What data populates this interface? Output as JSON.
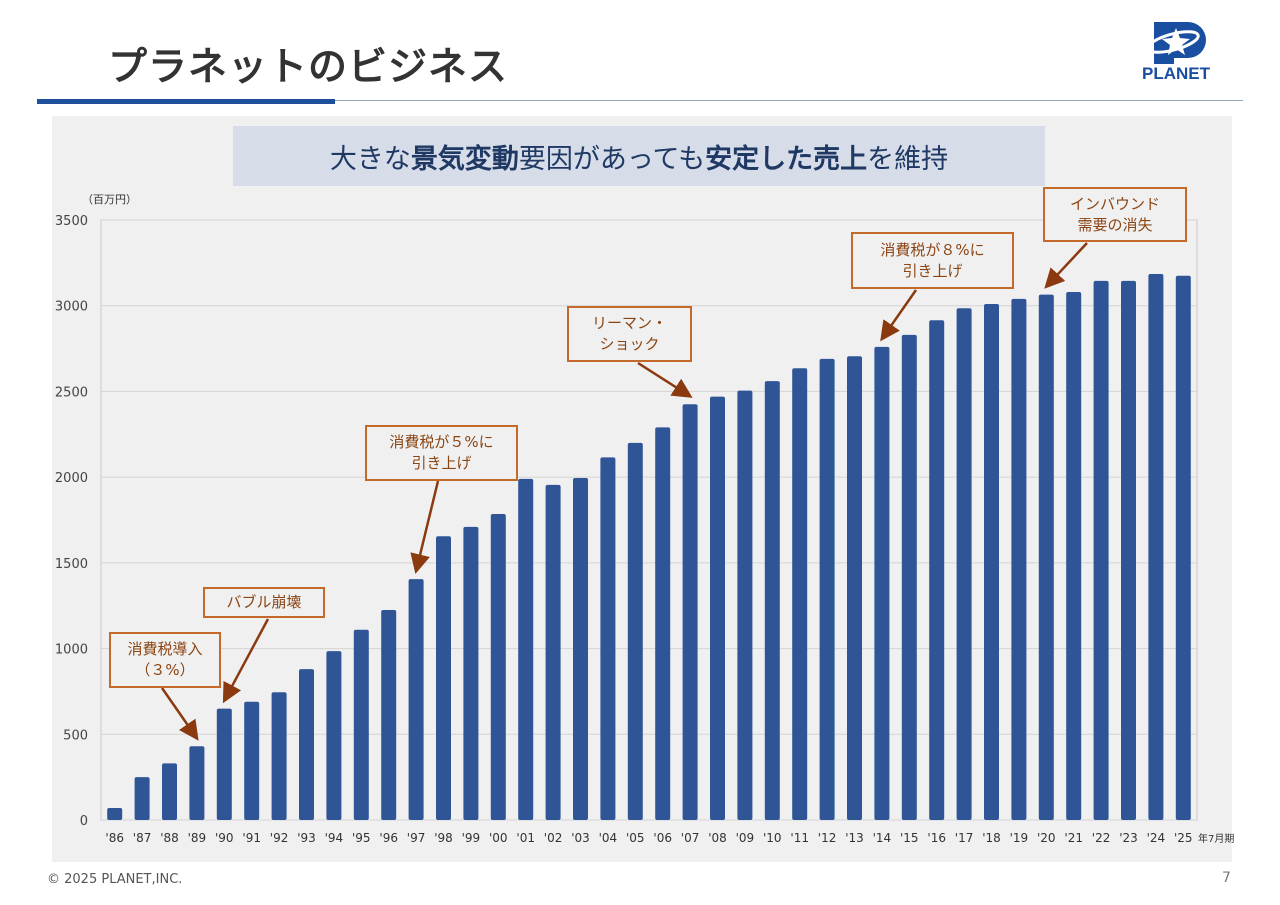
{
  "header": {
    "title": "プラネットのビジネス",
    "logo_text": "PLANET"
  },
  "banner": {
    "segments": [
      {
        "text": "大きな",
        "bold": false
      },
      {
        "text": "景気変動",
        "bold": true
      },
      {
        "text": "要因があっても",
        "bold": false
      },
      {
        "text": "安定した売上",
        "bold": true
      },
      {
        "text": "を維持",
        "bold": false
      }
    ]
  },
  "footer": {
    "copyright": "© 2025 PLANET,INC.",
    "page": "7"
  },
  "colors": {
    "bar": "#2f5597",
    "accent": "#1f4e9a",
    "annotation_border": "#c5692b",
    "annotation_text": "#8b4513",
    "arrow": "#8b3a0f"
  },
  "chart_data": {
    "type": "bar",
    "ylabel": "（百万円）",
    "xunit": "年7月期",
    "ylim": [
      0,
      3500
    ],
    "yticks": [
      0,
      500,
      1000,
      1500,
      2000,
      2500,
      3000,
      3500
    ],
    "grid": true,
    "categories": [
      "'86",
      "'87",
      "'88",
      "'89",
      "'90",
      "'91",
      "'92",
      "'93",
      "'94",
      "'95",
      "'96",
      "'97",
      "'98",
      "'99",
      "'00",
      "'01",
      "'02",
      "'03",
      "'04",
      "'05",
      "'06",
      "'07",
      "'08",
      "'09",
      "'10",
      "'11",
      "'12",
      "'13",
      "'14",
      "'15",
      "'16",
      "'17",
      "'18",
      "'19",
      "'20",
      "'21",
      "'22",
      "'23",
      "'24",
      "'25"
    ],
    "values": [
      70,
      250,
      330,
      430,
      650,
      690,
      745,
      880,
      985,
      1110,
      1225,
      1405,
      1655,
      1710,
      1785,
      1990,
      1955,
      1995,
      2115,
      2200,
      2290,
      2425,
      2470,
      2505,
      2560,
      2635,
      2690,
      2705,
      2760,
      2830,
      2915,
      2985,
      3010,
      3040,
      3065,
      3080,
      3145,
      3145,
      3185,
      3175
    ],
    "annotations": [
      {
        "lines": [
          "消費税導入",
          "（３%）"
        ],
        "category": "'89"
      },
      {
        "lines": [
          "バブル崩壊"
        ],
        "category": "'90"
      },
      {
        "lines": [
          "消費税が５%に",
          "引き上げ"
        ],
        "category": "'97"
      },
      {
        "lines": [
          "リーマン・",
          "ショック"
        ],
        "category": "'07"
      },
      {
        "lines": [
          "消費税が８%に",
          "引き上げ"
        ],
        "category": "'14"
      },
      {
        "lines": [
          "インバウンド",
          "需要の消失"
        ],
        "category": "'20"
      }
    ]
  }
}
